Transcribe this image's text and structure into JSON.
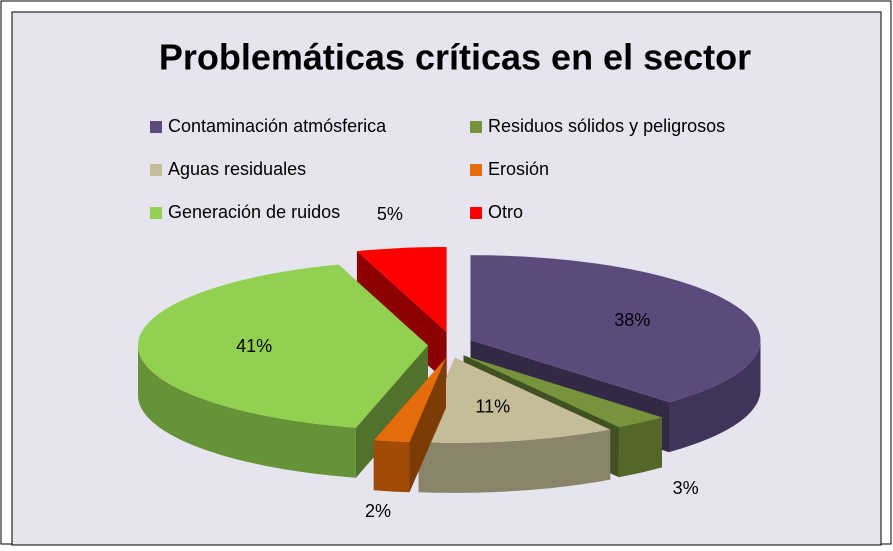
{
  "chart_data": {
    "type": "pie",
    "title": "Problemáticas críticas  en el sector",
    "categories": [
      "Contaminación atmósferica",
      "Residuos sólidos y peligrosos",
      "Aguas residuales",
      "Erosión",
      "Generación de ruidos",
      "Otro"
    ],
    "values": [
      38,
      3,
      11,
      2,
      41,
      5
    ],
    "value_labels": [
      "38%",
      "3%",
      "11%",
      "2%",
      "41%",
      "5%"
    ],
    "colors": [
      "#5c4a7d",
      "#77933c",
      "#c4bd97",
      "#e46c0a",
      "#92d050",
      "#ff0000"
    ],
    "legend": "top"
  }
}
